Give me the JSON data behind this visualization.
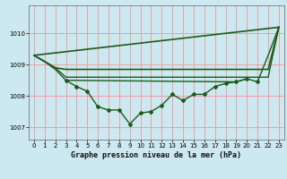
{
  "bg_color": "#cce8f0",
  "grid_color": "#f0a0a0",
  "line_color": "#1a5c1a",
  "title": "Graphe pression niveau de la mer (hPa)",
  "ylabel_ticks": [
    1007,
    1008,
    1009,
    1010
  ],
  "xlim": [
    -0.5,
    23.5
  ],
  "ylim": [
    1006.6,
    1010.9
  ],
  "line_diag": {
    "x": [
      0,
      23
    ],
    "y": [
      1009.3,
      1010.2
    ],
    "lw": 1.2
  },
  "line_flat1": {
    "x": [
      0,
      2,
      3,
      22,
      23
    ],
    "y": [
      1009.3,
      1008.9,
      1008.85,
      1008.85,
      1010.2
    ],
    "lw": 1.2
  },
  "line_flat2": {
    "x": [
      0,
      2,
      3,
      20,
      22,
      23
    ],
    "y": [
      1009.3,
      1008.9,
      1008.6,
      1008.6,
      1008.6,
      1010.2
    ],
    "lw": 1.0
  },
  "line_flat3": {
    "x": [
      3,
      19,
      20
    ],
    "y": [
      1008.5,
      1008.45,
      1008.55
    ],
    "lw": 1.0
  },
  "line_main": {
    "x": [
      0,
      1,
      2,
      3,
      4,
      5,
      6,
      7,
      8,
      9,
      10,
      11,
      12,
      13,
      14,
      15,
      16,
      17,
      18,
      19,
      20,
      21,
      22,
      23
    ],
    "y": [
      1009.3,
      1009.1,
      1008.85,
      1008.5,
      1008.3,
      1008.15,
      1007.65,
      1007.55,
      1007.55,
      1007.1,
      1007.45,
      1007.5,
      1007.7,
      1008.05,
      1007.85,
      1008.05,
      1008.05,
      1008.3,
      1008.4,
      1008.45,
      1008.55,
      1008.45,
      1009.3,
      1010.2
    ],
    "lw": 1.0
  }
}
